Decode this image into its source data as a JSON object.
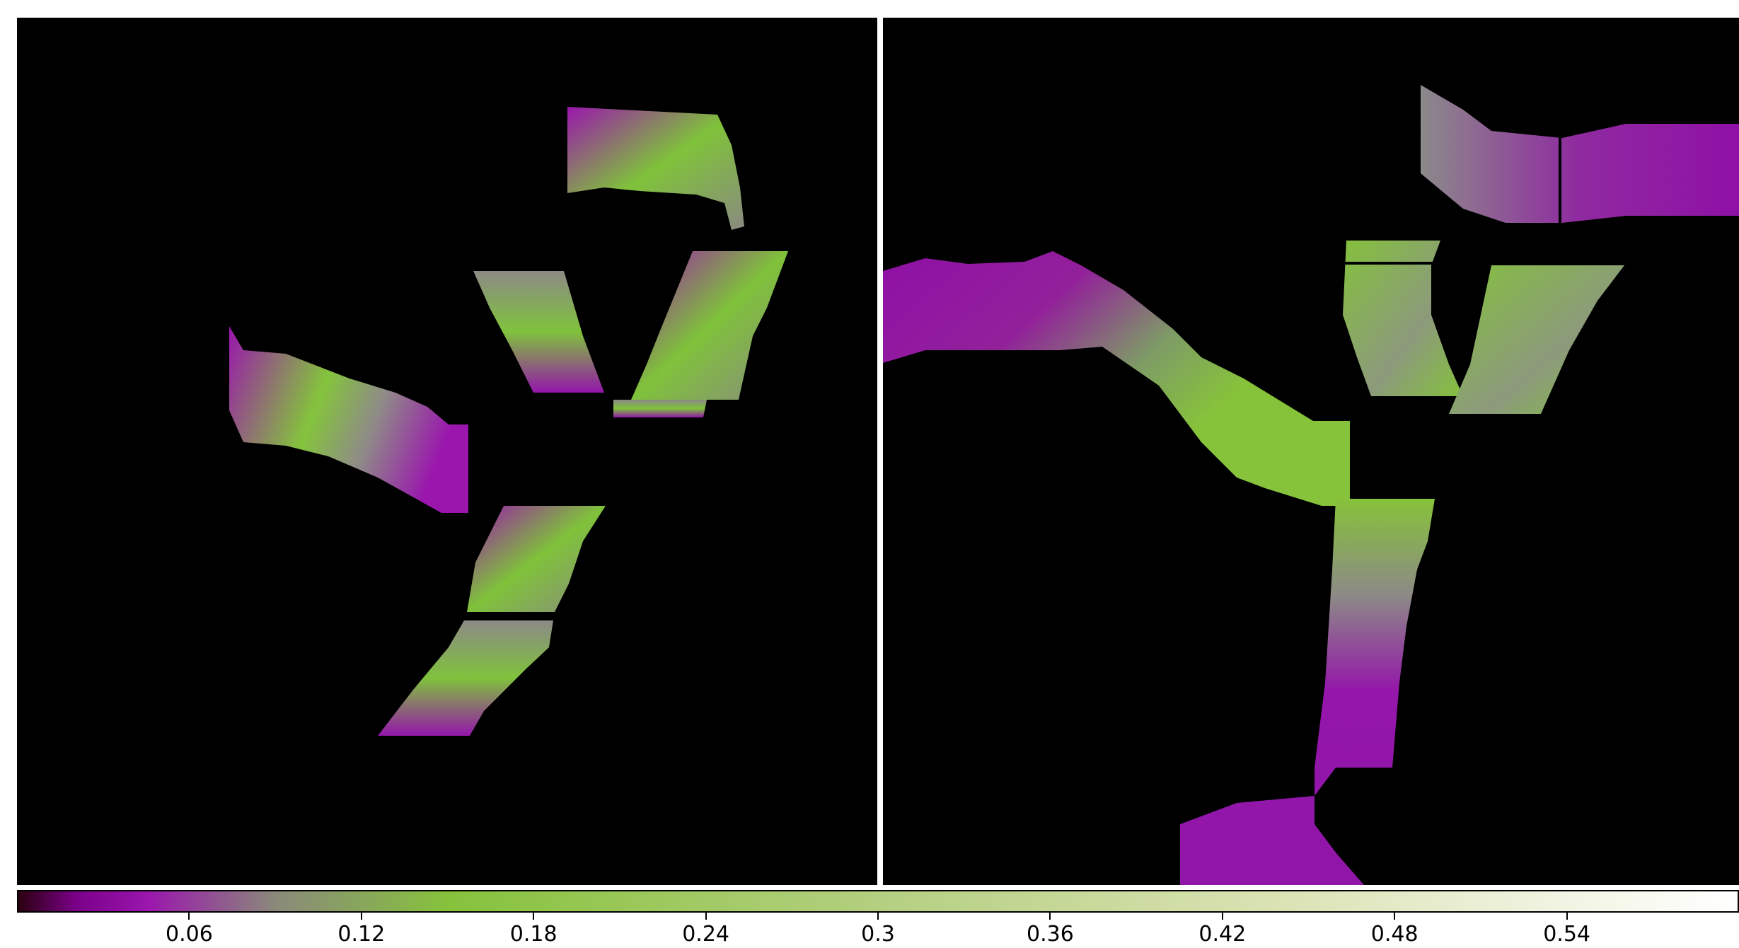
{
  "chart_data": {
    "type": "heatmap",
    "panels": [
      {
        "name": "",
        "background": "#000000"
      },
      {
        "name": "",
        "background": "#000000"
      }
    ],
    "colorbar": {
      "min": 0.0,
      "max": 0.6,
      "ticks": [
        0.06,
        0.12,
        0.18,
        0.24,
        0.3,
        0.36,
        0.42,
        0.48,
        0.54
      ],
      "tick_labels": [
        "0.06",
        "0.12",
        "0.18",
        "0.24",
        "0.3",
        "0.36",
        "0.42",
        "0.48",
        "0.54"
      ],
      "colormap_stops": [
        {
          "value": 0.0,
          "color": "#2b0010"
        },
        {
          "value": 0.02,
          "color": "#7a0088"
        },
        {
          "value": 0.045,
          "color": "#9a16ad"
        },
        {
          "value": 0.09,
          "color": "#8a8a7a"
        },
        {
          "value": 0.15,
          "color": "#86c23c"
        },
        {
          "value": 0.3,
          "color": "#b4cf80"
        },
        {
          "value": 0.45,
          "color": "#dde4b8"
        },
        {
          "value": 0.6,
          "color": "#ffffff"
        }
      ]
    },
    "colors": {
      "low": "#8f0fa8",
      "mid": "#8f9a78",
      "high": "#80c63a"
    }
  }
}
